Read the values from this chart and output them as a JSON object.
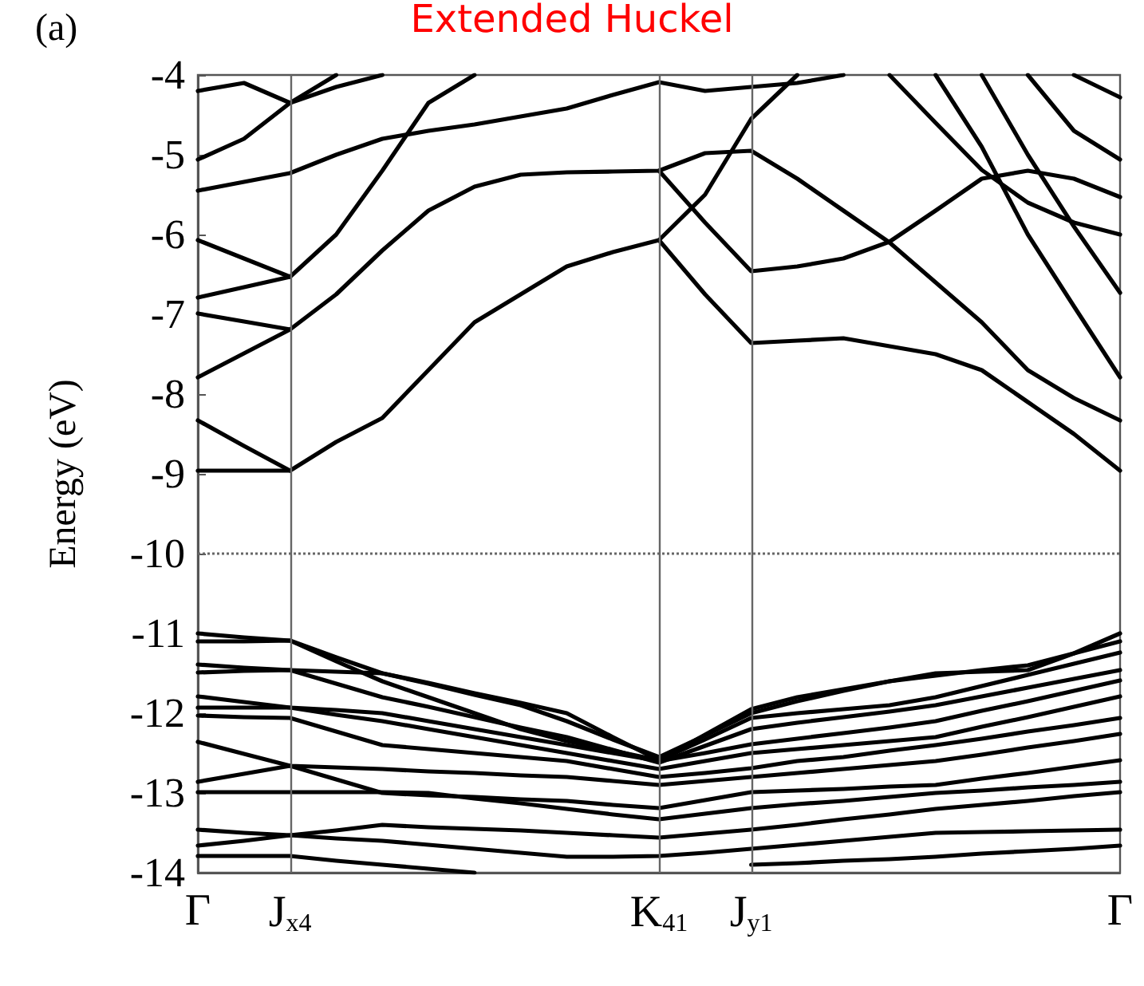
{
  "chart_data": {
    "type": "line",
    "title": "Extended Huckel",
    "ylabel": "Energy (eV)",
    "annotations": [
      "(a)"
    ],
    "categories": [
      "Γ",
      null,
      "J$_{x4}$",
      null,
      null,
      null,
      null,
      null,
      null,
      null,
      "K$_{41}$",
      null,
      "J$_{y1}$",
      null,
      null,
      null,
      null,
      null,
      null,
      null,
      "Γ"
    ],
    "ylim": [
      -14,
      -4
    ],
    "yticks": [
      -4,
      -5,
      -6,
      -7,
      -8,
      -9,
      -10,
      -11,
      -12,
      -13,
      -14
    ],
    "grid": false,
    "marker": "none",
    "line_style": "solid",
    "ref_lines": [
      {
        "axis": "x",
        "value": "J$_{x4}$",
        "color": "#666666",
        "line_style": "solid"
      },
      {
        "axis": "x",
        "value": "K$_{41}$",
        "color": "#666666",
        "line_style": "solid"
      },
      {
        "axis": "x",
        "value": "J$_{y1}$",
        "color": "#666666",
        "line_style": "solid"
      },
      {
        "axis": "y",
        "value": -10,
        "color": "#666666",
        "line_style": "dotted"
      }
    ],
    "series": [
      {
        "color": "#000000",
        "values": [
          -4.2,
          -4.1,
          -4.35,
          -4.15,
          -4.0,
          null,
          null,
          null,
          null,
          null,
          null,
          null,
          null,
          null,
          null,
          null,
          null,
          null,
          null,
          null,
          null
        ]
      },
      {
        "color": "#000000",
        "values": [
          -5.06,
          -4.8,
          -4.35,
          -4.0,
          null,
          null,
          null,
          null,
          null,
          null,
          null,
          null,
          null,
          null,
          null,
          null,
          null,
          null,
          null,
          null,
          null
        ]
      },
      {
        "color": "#000000",
        "values": [
          -5.45,
          -5.34,
          -5.23,
          -5.0,
          -4.8,
          -4.7,
          -4.62,
          -4.52,
          -4.42,
          -4.25,
          -4.09,
          -4.2,
          -4.15,
          -4.1,
          -4.0,
          null,
          null,
          null,
          null,
          null,
          null
        ]
      },
      {
        "color": "#000000",
        "values": [
          -6.07,
          -6.3,
          -6.53,
          -6.0,
          -5.2,
          -4.35,
          -4.0,
          null,
          null,
          null,
          null,
          null,
          null,
          null,
          null,
          null,
          null,
          null,
          null,
          null,
          null
        ]
      },
      {
        "color": "#000000",
        "values": [
          -6.79,
          -6.66,
          -6.53,
          null,
          null,
          null,
          null,
          null,
          null,
          null,
          null,
          null,
          null,
          null,
          null,
          null,
          null,
          null,
          null,
          null,
          null
        ]
      },
      {
        "color": "#000000",
        "values": [
          -6.99,
          -7.09,
          -7.19,
          -6.75,
          -6.2,
          -5.7,
          -5.4,
          -5.25,
          -5.22,
          -5.21,
          -5.2,
          -4.98,
          -4.95,
          -5.3,
          -5.7,
          -6.1,
          -6.6,
          -7.1,
          -7.7,
          -8.05,
          -8.33
        ]
      },
      {
        "color": "#000000",
        "values": [
          -7.79,
          -7.49,
          -7.19,
          null,
          null,
          null,
          null,
          null,
          null,
          null,
          null,
          null,
          null,
          null,
          null,
          null,
          null,
          null,
          null,
          null,
          null
        ]
      },
      {
        "color": "#000000",
        "values": [
          -8.33,
          -8.65,
          -8.96,
          -8.6,
          -8.3,
          -7.7,
          -7.1,
          -6.75,
          -6.4,
          -6.22,
          -6.07,
          -5.5,
          -4.55,
          -4.0,
          null,
          null,
          null,
          null,
          null,
          null,
          null
        ]
      },
      {
        "color": "#000000",
        "values": [
          -8.96,
          -8.96,
          -8.96,
          null,
          null,
          null,
          null,
          null,
          null,
          null,
          null,
          null,
          null,
          null,
          null,
          null,
          null,
          null,
          null,
          null,
          null
        ]
      },
      {
        "color": "#000000",
        "values": [
          null,
          null,
          null,
          null,
          null,
          null,
          null,
          null,
          null,
          null,
          -5.2,
          -5.85,
          -6.46,
          -6.4,
          -6.3,
          -6.09,
          -5.7,
          -5.3,
          -5.2,
          -5.3,
          -5.53
        ]
      },
      {
        "color": "#000000",
        "values": [
          null,
          null,
          null,
          null,
          null,
          null,
          null,
          null,
          null,
          null,
          -6.07,
          -6.75,
          -7.36,
          -7.33,
          -7.3,
          -7.4,
          -7.5,
          -7.7,
          -8.1,
          -8.5,
          -8.96
        ]
      },
      {
        "color": "#000000",
        "values": [
          null,
          null,
          null,
          null,
          null,
          null,
          null,
          null,
          null,
          null,
          null,
          null,
          null,
          null,
          null,
          -4.0,
          -4.6,
          -5.19,
          -5.6,
          -5.85,
          -6.0
        ]
      },
      {
        "color": "#000000",
        "values": [
          null,
          null,
          null,
          null,
          null,
          null,
          null,
          null,
          null,
          null,
          null,
          null,
          null,
          null,
          null,
          null,
          -4.0,
          -4.9,
          -6.0,
          -6.9,
          -7.79
        ]
      },
      {
        "color": "#000000",
        "values": [
          null,
          null,
          null,
          null,
          null,
          null,
          null,
          null,
          null,
          null,
          null,
          null,
          null,
          null,
          null,
          null,
          null,
          -4.0,
          -5.0,
          -5.9,
          -6.73
        ]
      },
      {
        "color": "#000000",
        "values": [
          null,
          null,
          null,
          null,
          null,
          null,
          null,
          null,
          null,
          null,
          null,
          null,
          null,
          null,
          null,
          null,
          null,
          null,
          -4.0,
          -4.7,
          -5.06
        ]
      },
      {
        "color": "#000000",
        "values": [
          null,
          null,
          null,
          null,
          null,
          null,
          null,
          null,
          null,
          null,
          null,
          null,
          null,
          null,
          null,
          null,
          null,
          null,
          null,
          -4.0,
          -4.28
        ]
      },
      {
        "color": "#000000",
        "values": [
          -11.0,
          -11.05,
          -11.09,
          -11.35,
          -11.6,
          -11.8,
          -12.0,
          -12.2,
          -12.35,
          -12.47,
          -12.59,
          -12.27,
          -11.95,
          -11.8,
          -11.7,
          -11.6,
          -11.5,
          -11.48,
          -11.46,
          -11.25,
          -11.0
        ]
      },
      {
        "color": "#000000",
        "values": [
          -11.1,
          -11.1,
          -11.09,
          -11.3,
          -11.5,
          -11.63,
          -11.77,
          -11.9,
          -12.1,
          -12.33,
          -12.55,
          -12.28,
          -12.0,
          -11.85,
          -11.72,
          -11.6,
          -11.53,
          -11.46,
          -11.4,
          -11.25,
          -11.1
        ]
      },
      {
        "color": "#000000",
        "values": [
          -11.39,
          -11.43,
          -11.46,
          -11.48,
          -11.5,
          -11.62,
          -11.75,
          -11.87,
          -12.0,
          -12.3,
          -12.59,
          -12.33,
          -12.06,
          -12.0,
          -11.95,
          -11.9,
          -11.8,
          -11.66,
          -11.52,
          -11.38,
          -11.24
        ]
      },
      {
        "color": "#000000",
        "values": [
          -11.49,
          -11.47,
          -11.46,
          -11.63,
          -11.8,
          -11.92,
          -12.05,
          -12.18,
          -12.3,
          -12.46,
          -12.62,
          -12.41,
          -12.2,
          -12.12,
          -12.05,
          -11.98,
          -11.9,
          -11.79,
          -11.68,
          -11.57,
          -11.46
        ]
      },
      {
        "color": "#000000",
        "values": [
          -11.79,
          -11.86,
          -11.93,
          -11.96,
          -12.0,
          -12.1,
          -12.2,
          -12.3,
          -12.4,
          -12.5,
          -12.6,
          -12.5,
          -12.39,
          -12.32,
          -12.25,
          -12.18,
          -12.1,
          -11.97,
          -11.85,
          -11.72,
          -11.59
        ]
      },
      {
        "color": "#000000",
        "values": [
          -11.93,
          -11.93,
          -11.93,
          -12.02,
          -12.1,
          -12.2,
          -12.3,
          -12.4,
          -12.5,
          -12.6,
          -12.7,
          -12.6,
          -12.5,
          -12.45,
          -12.4,
          -12.35,
          -12.3,
          -12.17,
          -12.05,
          -11.92,
          -11.79
        ]
      },
      {
        "color": "#000000",
        "values": [
          -12.03,
          -12.05,
          -12.06,
          -12.23,
          -12.4,
          -12.45,
          -12.5,
          -12.55,
          -12.6,
          -12.7,
          -12.8,
          -12.75,
          -12.69,
          -12.6,
          -12.55,
          -12.47,
          -12.4,
          -12.32,
          -12.23,
          -12.15,
          -12.06
        ]
      },
      {
        "color": "#000000",
        "values": [
          -12.36,
          -12.51,
          -12.66,
          -12.68,
          -12.7,
          -12.73,
          -12.75,
          -12.78,
          -12.8,
          -12.85,
          -12.9,
          -12.85,
          -12.8,
          -12.75,
          -12.7,
          -12.65,
          -12.6,
          -12.52,
          -12.43,
          -12.35,
          -12.26
        ]
      },
      {
        "color": "#000000",
        "values": [
          -12.86,
          -12.76,
          -12.66,
          -12.83,
          -13.0,
          -13.03,
          -13.05,
          -13.08,
          -13.1,
          -13.15,
          -13.19,
          -13.09,
          -12.99,
          -12.97,
          -12.95,
          -12.92,
          -12.9,
          -12.82,
          -12.75,
          -12.67,
          -12.59
        ]
      },
      {
        "color": "#000000",
        "values": [
          -12.99,
          -12.99,
          -12.99,
          -12.99,
          -12.99,
          -13.0,
          -13.07,
          -13.13,
          -13.2,
          -13.27,
          -13.33,
          -13.26,
          -13.19,
          -13.14,
          -13.1,
          -13.05,
          -13.0,
          -12.97,
          -12.93,
          -12.9,
          -12.86
        ]
      },
      {
        "color": "#000000",
        "values": [
          -13.46,
          -13.5,
          -13.53,
          -13.47,
          -13.4,
          -13.43,
          -13.45,
          -13.47,
          -13.5,
          -13.53,
          -13.56,
          -13.51,
          -13.46,
          -13.4,
          -13.33,
          -13.27,
          -13.2,
          -13.15,
          -13.1,
          -13.04,
          -12.99
        ]
      },
      {
        "color": "#000000",
        "values": [
          -13.66,
          -13.6,
          -13.53,
          -13.57,
          -13.6,
          -13.65,
          -13.7,
          -13.75,
          -13.8,
          -13.8,
          -13.79,
          -13.75,
          -13.7,
          -13.65,
          -13.6,
          -13.55,
          -13.5,
          -13.49,
          -13.48,
          -13.47,
          -13.46
        ]
      },
      {
        "color": "#000000",
        "values": [
          -13.79,
          -13.79,
          -13.79,
          -13.85,
          -13.9,
          -13.95,
          -14.0,
          null,
          null,
          null,
          null,
          null,
          null,
          null,
          null,
          null,
          null,
          null,
          null,
          null,
          null
        ]
      },
      {
        "color": "#000000",
        "values": [
          null,
          null,
          null,
          null,
          null,
          null,
          null,
          null,
          null,
          null,
          null,
          null,
          -13.9,
          -13.88,
          -13.85,
          -13.83,
          -13.8,
          -13.76,
          -13.73,
          -13.7,
          -13.66
        ]
      }
    ]
  }
}
